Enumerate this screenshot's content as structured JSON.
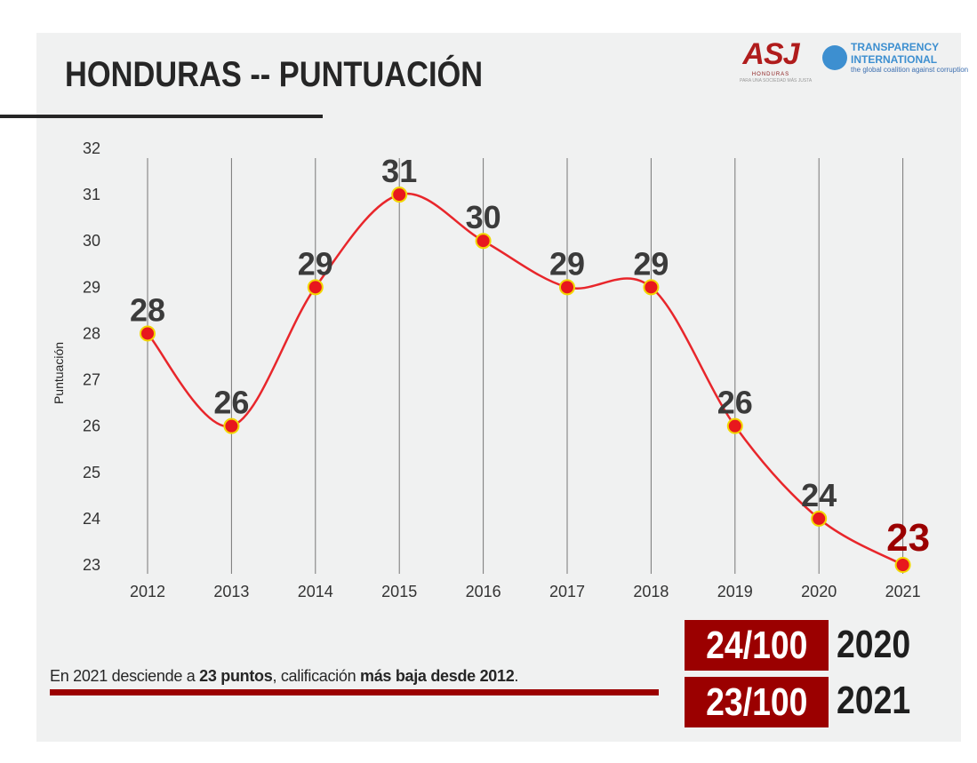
{
  "header": {
    "title": "HONDURAS -- PUNTUACIÓN"
  },
  "logos": {
    "asj": {
      "word": "ASJ",
      "sub": "HONDURAS",
      "tagline": "PARA UNA SOCIEDAD MÁS JUSTA"
    },
    "ti": {
      "line1": "TRANSPARENCY",
      "line2": "INTERNATIONAL",
      "tagline": "the global coalition against corruption"
    }
  },
  "chart_data": {
    "type": "line",
    "title": "",
    "xlabel": "",
    "ylabel": "Puntuación",
    "x": [
      "2012",
      "2013",
      "2014",
      "2015",
      "2016",
      "2017",
      "2018",
      "2019",
      "2020",
      "2021"
    ],
    "values": [
      28,
      26,
      29,
      31,
      30,
      29,
      29,
      26,
      24,
      23
    ],
    "data_labels": [
      "28",
      "26",
      "29",
      "31",
      "30",
      "29",
      "29",
      "26",
      "24",
      "23"
    ],
    "ylim": [
      23,
      32
    ],
    "yticks": [
      "23",
      "24",
      "25",
      "26",
      "27",
      "28",
      "29",
      "30",
      "31",
      "32"
    ],
    "grid": "vertical",
    "smooth": true,
    "colors": {
      "line": "#e8262b",
      "marker_fill": "#e8171d",
      "marker_edge": "#f2d600",
      "label": "#3b3b3b",
      "highlight_label": "#9b0000"
    }
  },
  "caption": {
    "p1": "En 2021 desciende a ",
    "b1": "23 puntos",
    "p2": ", calificación ",
    "b2": "más baja desde 2012",
    "p3": "."
  },
  "scores": [
    {
      "score": "24/100",
      "year": "2020"
    },
    {
      "score": "23/100",
      "year": "2021"
    }
  ],
  "colors": {
    "accent": "#9b0000",
    "panel": "#f0f1f1"
  }
}
